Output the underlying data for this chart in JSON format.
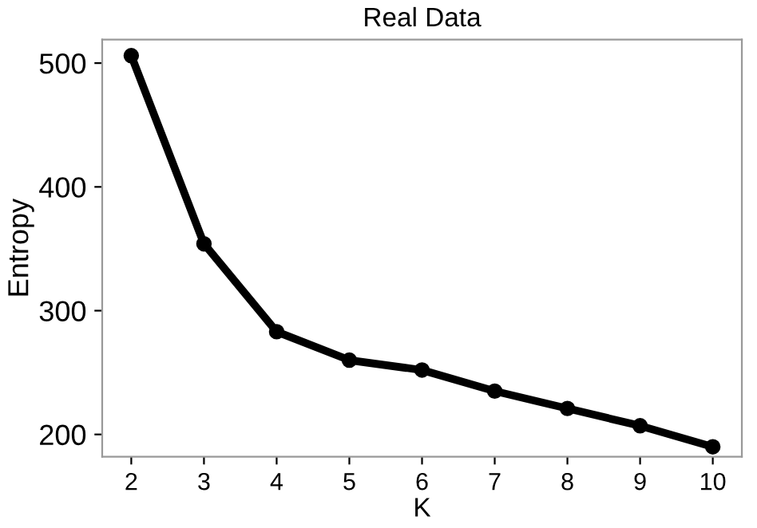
{
  "chart_data": {
    "type": "line",
    "title": "Real Data",
    "xlabel": "K",
    "ylabel": "Entropy",
    "x": [
      2,
      3,
      4,
      5,
      6,
      7,
      8,
      9,
      10
    ],
    "series": [
      {
        "color": "#000000",
        "values": [
          506,
          354,
          283,
          260,
          252,
          235,
          221,
          207,
          190
        ]
      }
    ],
    "xlim": [
      1.6,
      10.4
    ],
    "ylim": [
      182,
      519
    ],
    "xticks": [
      2,
      3,
      4,
      5,
      6,
      7,
      8,
      9,
      10
    ],
    "yticks": [
      200,
      300,
      400,
      500
    ],
    "marker": "circle",
    "line_style": "solid",
    "grid": false,
    "legend": false
  }
}
